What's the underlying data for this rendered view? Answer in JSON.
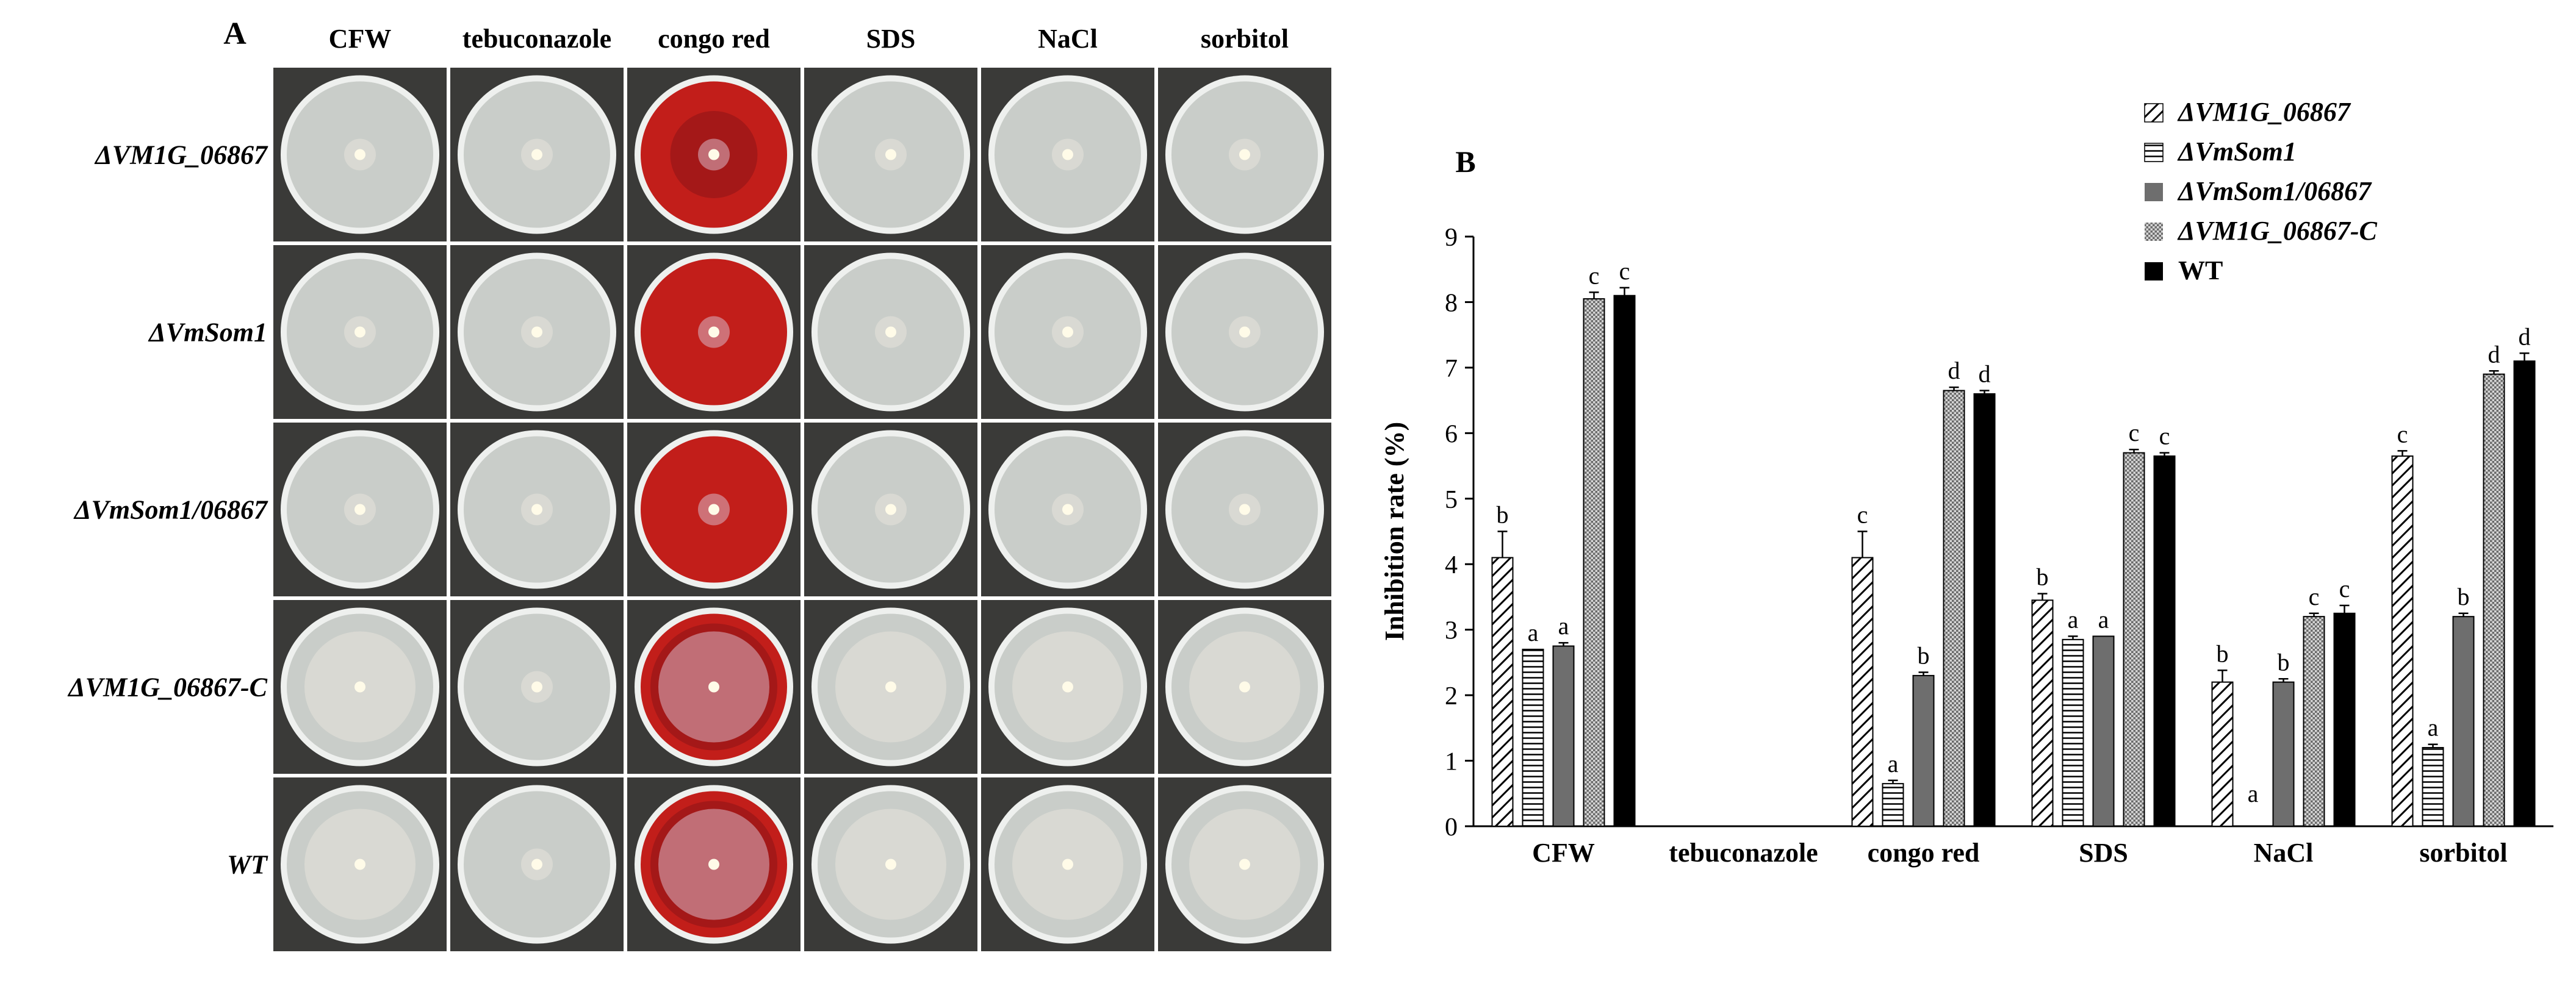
{
  "panel_a": {
    "label": "A",
    "columns": [
      "CFW",
      "tebuconazole",
      "congo red",
      "SDS",
      "NaCl",
      "sorbitol"
    ],
    "rows": [
      "ΔVM1G_06867",
      "ΔVmSom1",
      "ΔVmSom1/06867",
      "ΔVM1G_06867-C",
      "WT"
    ],
    "colors": {
      "plate": "#c9cdc9",
      "plate_edge": "#eef0ee",
      "background": "#3a3a38",
      "congo": "#c21e1a",
      "congo_dark": "#8f1418"
    }
  },
  "chart_data": {
    "type": "bar",
    "panel_label": "B",
    "categories": [
      "CFW",
      "tebuconazole",
      "congo red",
      "SDS",
      "NaCl",
      "sorbitol"
    ],
    "ylabel": "Inhibition rate (%)",
    "ylim": [
      0,
      9
    ],
    "yticks": [
      0,
      1,
      2,
      3,
      4,
      5,
      6,
      7,
      8,
      9
    ],
    "grid": false,
    "legend_position": "top-right",
    "series": [
      {
        "name": "ΔVM1G_06867",
        "pattern": "diagonal-hatch",
        "values": [
          4.1,
          0,
          4.1,
          3.45,
          2.2,
          5.65
        ],
        "errors": [
          0.4,
          0,
          0.4,
          0.1,
          0.18,
          0.08
        ],
        "letters": [
          "b",
          "",
          "c",
          "b",
          "b",
          "c"
        ]
      },
      {
        "name": "ΔVmSom1",
        "pattern": "horizontal-lines",
        "values": [
          2.7,
          0,
          0.65,
          2.85,
          0,
          1.2
        ],
        "errors": [
          0,
          0,
          0.05,
          0.05,
          0,
          0.05
        ],
        "letters": [
          "a",
          "",
          "a",
          "a",
          "a",
          "a"
        ]
      },
      {
        "name": "ΔVmSom1/06867",
        "pattern": "solid-gray",
        "values": [
          2.75,
          0,
          2.3,
          2.9,
          2.2,
          3.2
        ],
        "errors": [
          0.05,
          0,
          0.05,
          0,
          0.05,
          0.05
        ],
        "letters": [
          "a",
          "",
          "b",
          "a",
          "b",
          "b"
        ]
      },
      {
        "name": "ΔVM1G_06867-C",
        "pattern": "dotted",
        "values": [
          8.05,
          0,
          6.65,
          5.7,
          3.2,
          6.9
        ],
        "errors": [
          0.1,
          0,
          0.05,
          0.05,
          0.05,
          0.05
        ],
        "letters": [
          "c",
          "",
          "d",
          "c",
          "c",
          "d"
        ]
      },
      {
        "name": "WT",
        "pattern": "solid-black",
        "values": [
          8.1,
          0,
          6.6,
          5.65,
          3.25,
          7.1
        ],
        "errors": [
          0.12,
          0,
          0.05,
          0.05,
          0.12,
          0.12
        ],
        "letters": [
          "c",
          "",
          "d",
          "c",
          "c",
          "d"
        ]
      }
    ],
    "colors": {
      "hatch": "#000000",
      "lines": "#000000",
      "gray": "#6e6e6e",
      "dotted": "#8a8a8a",
      "black": "#000000"
    }
  }
}
